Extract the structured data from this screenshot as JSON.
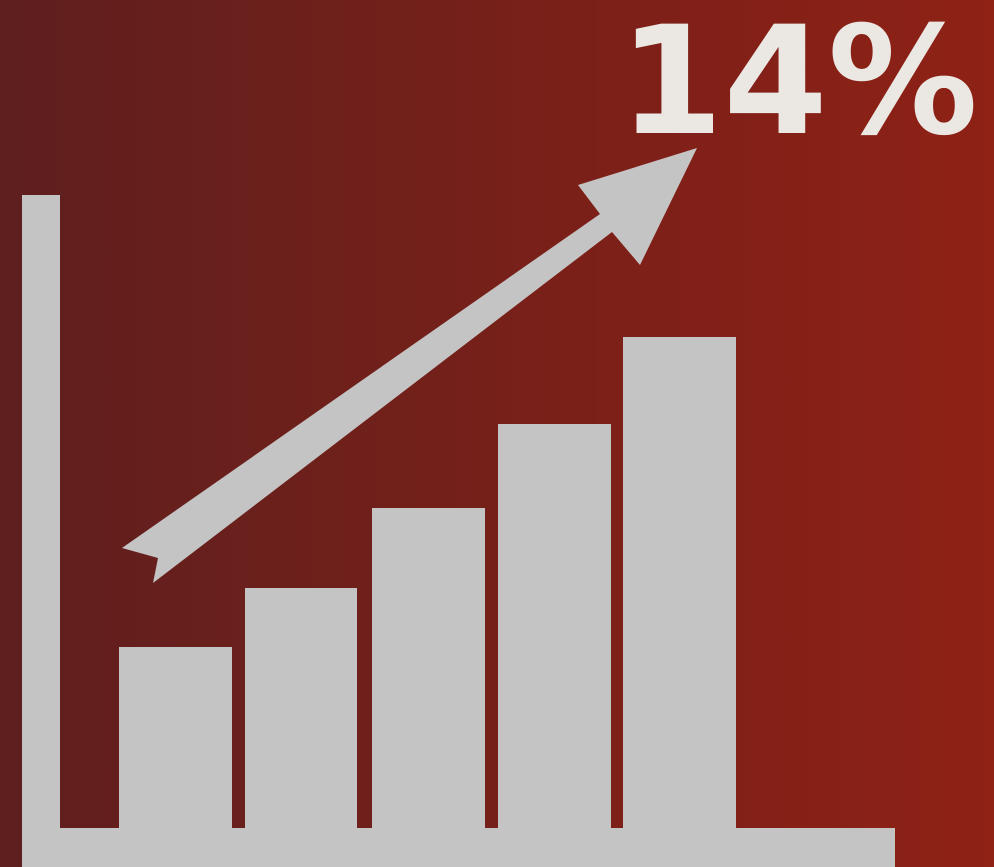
{
  "headline": "14%"
}
